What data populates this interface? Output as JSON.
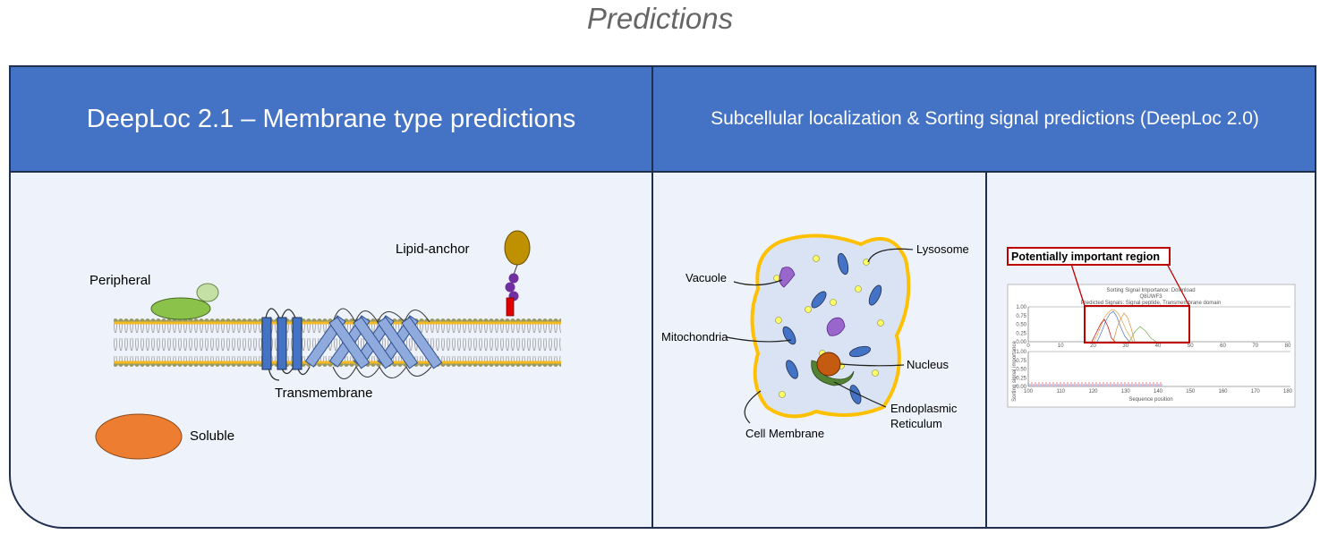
{
  "title": "Predictions",
  "left_panel": {
    "header": "DeepLoc 2.1 – Membrane type predictions",
    "labels": {
      "peripheral": "Peripheral",
      "lipid_anchor": "Lipid-anchor",
      "transmembrane": "Transmembrane",
      "soluble": "Soluble"
    }
  },
  "right_panel": {
    "header": "Subcellular localization & Sorting signal predictions (DeepLoc 2.0)",
    "cell_labels": {
      "vacuole": "Vacuole",
      "lysosome": "Lysosome",
      "mitochondria": "Mitochondria",
      "nucleus": "Nucleus",
      "endoplasmic_reticulum_line1": "Endoplasmic",
      "endoplasmic_reticulum_line2": "Reticulum",
      "cell_membrane": "Cell Membrane"
    },
    "sorting_signal": {
      "highlight_label": "Potentially important region",
      "plot_title": "Sorting Signal Importance: Download",
      "protein_id": "Q8UWF3",
      "predicted_signals": "Predicted Signals: Signal peptide, Transmembrane domain",
      "y_ticks": [
        "1.00",
        "0.75",
        "0.50",
        "0.25",
        "0.00"
      ],
      "x_ticks_top": [
        "0",
        "10",
        "20",
        "30",
        "40",
        "50",
        "60",
        "70",
        "80"
      ],
      "x_ticks_bottom": [
        "100",
        "110",
        "120",
        "130",
        "140",
        "150",
        "160",
        "170",
        "180"
      ],
      "x_label": "Sequence position",
      "y_label": "Sorting signal importance"
    }
  },
  "colors": {
    "header_bg": "#4472c4",
    "panel_bg": "#eef2fa",
    "border": "#1f2f4f",
    "membrane_head": "#9c9c5a",
    "membrane_gold": "#f5b921",
    "protein_blue": "#4472c4",
    "peripheral_green": "#8bc34a",
    "soluble_orange": "#ed7d31",
    "lipid_anchor_gold": "#bf9000",
    "lipid_anchor_purple": "#7030a0",
    "cell_outline": "#ffc000",
    "cell_fill": "#dae3f3",
    "vacuole_purple": "#9966cc",
    "nucleus_brown": "#c55a11",
    "er_green": "#548235",
    "highlight_red": "#c00000"
  }
}
